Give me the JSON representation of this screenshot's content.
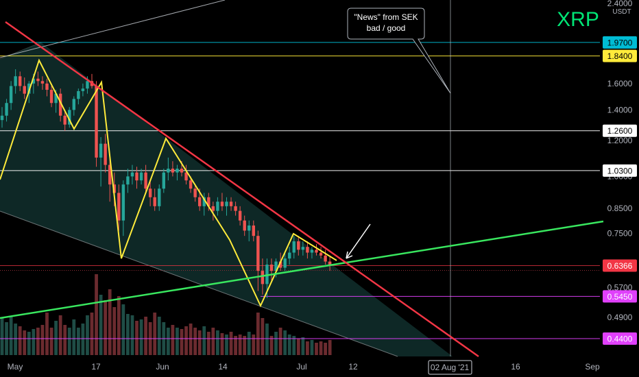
{
  "chart_data": {
    "type": "candlestick",
    "symbol": "XRP",
    "currency": "USDT",
    "scale": "log",
    "x_ticks": [
      "May",
      "17",
      "Jun",
      "14",
      "Jul",
      "12",
      "16",
      "Sep"
    ],
    "x_crosshair_label": "02 Aug '21",
    "y_ticks": [
      "2.4000",
      "1.6000",
      "1.4000",
      "1.2000",
      "1.0000",
      "0.8500",
      "0.7500",
      "0.5700",
      "0.4900"
    ],
    "y_tick_values": [
      2.4,
      1.6,
      1.4,
      1.2,
      1.0,
      0.85,
      0.75,
      0.57,
      0.49
    ],
    "levels": [
      {
        "label": "1.9700",
        "value": 1.97,
        "color": "#00bcd4",
        "text_color": "#000000"
      },
      {
        "label": "1.8400",
        "value": 1.84,
        "color": "#ffeb3b",
        "text_color": "#000000"
      },
      {
        "label": "1.2600",
        "value": 1.26,
        "color": "#ffffff",
        "text_color": "#000000"
      },
      {
        "label": "1.0300",
        "value": 1.03,
        "color": "#ffffff",
        "text_color": "#000000"
      },
      {
        "label": "0.6366",
        "value": 0.6366,
        "color": "#f23645",
        "text_color": "#ffffff"
      },
      {
        "label": "0.5450",
        "value": 0.545,
        "color": "#e040fb",
        "text_color": "#ffffff"
      },
      {
        "label": "0.4400",
        "value": 0.44,
        "color": "#e040fb",
        "text_color": "#ffffff"
      }
    ],
    "annotation": "\"News\" from SEK bad / good",
    "colors": {
      "up": "#26a69a",
      "down": "#ef5350",
      "title": "#00e676",
      "resistance": "#f23645",
      "support": "#39e75f",
      "zigzag": "#ffeb3b",
      "channel_fill": "#0f2a28"
    },
    "candles": [
      {
        "o": 1.33,
        "h": 1.42,
        "l": 1.28,
        "c": 1.36
      },
      {
        "o": 1.36,
        "h": 1.48,
        "l": 1.32,
        "c": 1.45
      },
      {
        "o": 1.45,
        "h": 1.62,
        "l": 1.4,
        "c": 1.58
      },
      {
        "o": 1.58,
        "h": 1.72,
        "l": 1.52,
        "c": 1.66
      },
      {
        "o": 1.66,
        "h": 1.7,
        "l": 1.54,
        "c": 1.58
      },
      {
        "o": 1.58,
        "h": 1.65,
        "l": 1.48,
        "c": 1.52
      },
      {
        "o": 1.52,
        "h": 1.62,
        "l": 1.45,
        "c": 1.6
      },
      {
        "o": 1.6,
        "h": 1.68,
        "l": 1.52,
        "c": 1.64
      },
      {
        "o": 1.64,
        "h": 1.7,
        "l": 1.58,
        "c": 1.62
      },
      {
        "o": 1.62,
        "h": 1.66,
        "l": 1.55,
        "c": 1.6
      },
      {
        "o": 1.6,
        "h": 1.64,
        "l": 1.5,
        "c": 1.55
      },
      {
        "o": 1.55,
        "h": 1.58,
        "l": 1.42,
        "c": 1.45
      },
      {
        "o": 1.45,
        "h": 1.55,
        "l": 1.38,
        "c": 1.52
      },
      {
        "o": 1.52,
        "h": 1.56,
        "l": 1.32,
        "c": 1.36
      },
      {
        "o": 1.36,
        "h": 1.4,
        "l": 1.26,
        "c": 1.3
      },
      {
        "o": 1.3,
        "h": 1.42,
        "l": 1.28,
        "c": 1.4
      },
      {
        "o": 1.4,
        "h": 1.5,
        "l": 1.36,
        "c": 1.48
      },
      {
        "o": 1.48,
        "h": 1.56,
        "l": 1.44,
        "c": 1.54
      },
      {
        "o": 1.54,
        "h": 1.6,
        "l": 1.5,
        "c": 1.56
      },
      {
        "o": 1.56,
        "h": 1.66,
        "l": 1.52,
        "c": 1.62
      },
      {
        "o": 1.62,
        "h": 1.68,
        "l": 1.56,
        "c": 1.58
      },
      {
        "o": 1.58,
        "h": 1.62,
        "l": 1.05,
        "c": 1.1
      },
      {
        "o": 1.1,
        "h": 1.22,
        "l": 0.95,
        "c": 1.18
      },
      {
        "o": 1.18,
        "h": 1.24,
        "l": 1.02,
        "c": 1.06
      },
      {
        "o": 1.06,
        "h": 1.12,
        "l": 0.88,
        "c": 0.96
      },
      {
        "o": 0.96,
        "h": 1.02,
        "l": 0.86,
        "c": 0.92
      },
      {
        "o": 0.92,
        "h": 0.96,
        "l": 0.76,
        "c": 0.8
      },
      {
        "o": 0.8,
        "h": 0.98,
        "l": 0.74,
        "c": 0.96
      },
      {
        "o": 0.96,
        "h": 1.04,
        "l": 0.92,
        "c": 1.0
      },
      {
        "o": 1.0,
        "h": 1.06,
        "l": 0.96,
        "c": 1.02
      },
      {
        "o": 1.02,
        "h": 1.05,
        "l": 0.94,
        "c": 0.98
      },
      {
        "o": 0.98,
        "h": 1.04,
        "l": 0.96,
        "c": 1.02
      },
      {
        "o": 1.02,
        "h": 1.06,
        "l": 0.92,
        "c": 0.94
      },
      {
        "o": 0.94,
        "h": 0.98,
        "l": 0.86,
        "c": 0.9
      },
      {
        "o": 0.9,
        "h": 0.94,
        "l": 0.84,
        "c": 0.86
      },
      {
        "o": 0.86,
        "h": 0.96,
        "l": 0.84,
        "c": 0.94
      },
      {
        "o": 0.94,
        "h": 1.04,
        "l": 0.92,
        "c": 1.02
      },
      {
        "o": 1.02,
        "h": 1.1,
        "l": 0.98,
        "c": 1.04
      },
      {
        "o": 1.04,
        "h": 1.08,
        "l": 1.0,
        "c": 1.02
      },
      {
        "o": 1.02,
        "h": 1.06,
        "l": 0.98,
        "c": 1.04
      },
      {
        "o": 1.04,
        "h": 1.08,
        "l": 1.0,
        "c": 1.02
      },
      {
        "o": 1.02,
        "h": 1.06,
        "l": 0.96,
        "c": 0.98
      },
      {
        "o": 0.98,
        "h": 1.0,
        "l": 0.92,
        "c": 0.94
      },
      {
        "o": 0.94,
        "h": 0.96,
        "l": 0.88,
        "c": 0.9
      },
      {
        "o": 0.9,
        "h": 0.94,
        "l": 0.84,
        "c": 0.86
      },
      {
        "o": 0.86,
        "h": 0.92,
        "l": 0.82,
        "c": 0.9
      },
      {
        "o": 0.9,
        "h": 0.92,
        "l": 0.84,
        "c": 0.86
      },
      {
        "o": 0.86,
        "h": 0.88,
        "l": 0.8,
        "c": 0.84
      },
      {
        "o": 0.84,
        "h": 0.9,
        "l": 0.82,
        "c": 0.88
      },
      {
        "o": 0.88,
        "h": 0.92,
        "l": 0.84,
        "c": 0.86
      },
      {
        "o": 0.86,
        "h": 0.9,
        "l": 0.82,
        "c": 0.88
      },
      {
        "o": 0.88,
        "h": 0.9,
        "l": 0.84,
        "c": 0.86
      },
      {
        "o": 0.86,
        "h": 0.88,
        "l": 0.82,
        "c": 0.84
      },
      {
        "o": 0.84,
        "h": 0.86,
        "l": 0.78,
        "c": 0.8
      },
      {
        "o": 0.8,
        "h": 0.82,
        "l": 0.74,
        "c": 0.76
      },
      {
        "o": 0.76,
        "h": 0.8,
        "l": 0.72,
        "c": 0.78
      },
      {
        "o": 0.78,
        "h": 0.8,
        "l": 0.72,
        "c": 0.74
      },
      {
        "o": 0.74,
        "h": 0.76,
        "l": 0.56,
        "c": 0.62
      },
      {
        "o": 0.62,
        "h": 0.66,
        "l": 0.55,
        "c": 0.58
      },
      {
        "o": 0.58,
        "h": 0.66,
        "l": 0.54,
        "c": 0.64
      },
      {
        "o": 0.64,
        "h": 0.66,
        "l": 0.59,
        "c": 0.62
      },
      {
        "o": 0.62,
        "h": 0.66,
        "l": 0.6,
        "c": 0.65
      },
      {
        "o": 0.65,
        "h": 0.68,
        "l": 0.62,
        "c": 0.63
      },
      {
        "o": 0.63,
        "h": 0.68,
        "l": 0.62,
        "c": 0.66
      },
      {
        "o": 0.66,
        "h": 0.7,
        "l": 0.64,
        "c": 0.68
      },
      {
        "o": 0.68,
        "h": 0.74,
        "l": 0.66,
        "c": 0.72
      },
      {
        "o": 0.72,
        "h": 0.74,
        "l": 0.67,
        "c": 0.69
      },
      {
        "o": 0.69,
        "h": 0.72,
        "l": 0.67,
        "c": 0.7
      },
      {
        "o": 0.7,
        "h": 0.72,
        "l": 0.66,
        "c": 0.68
      },
      {
        "o": 0.68,
        "h": 0.7,
        "l": 0.66,
        "c": 0.69
      },
      {
        "o": 0.69,
        "h": 0.71,
        "l": 0.67,
        "c": 0.68
      },
      {
        "o": 0.68,
        "h": 0.7,
        "l": 0.66,
        "c": 0.67
      },
      {
        "o": 0.67,
        "h": 0.69,
        "l": 0.64,
        "c": 0.65
      },
      {
        "o": 0.65,
        "h": 0.67,
        "l": 0.62,
        "c": 0.6366
      }
    ]
  }
}
